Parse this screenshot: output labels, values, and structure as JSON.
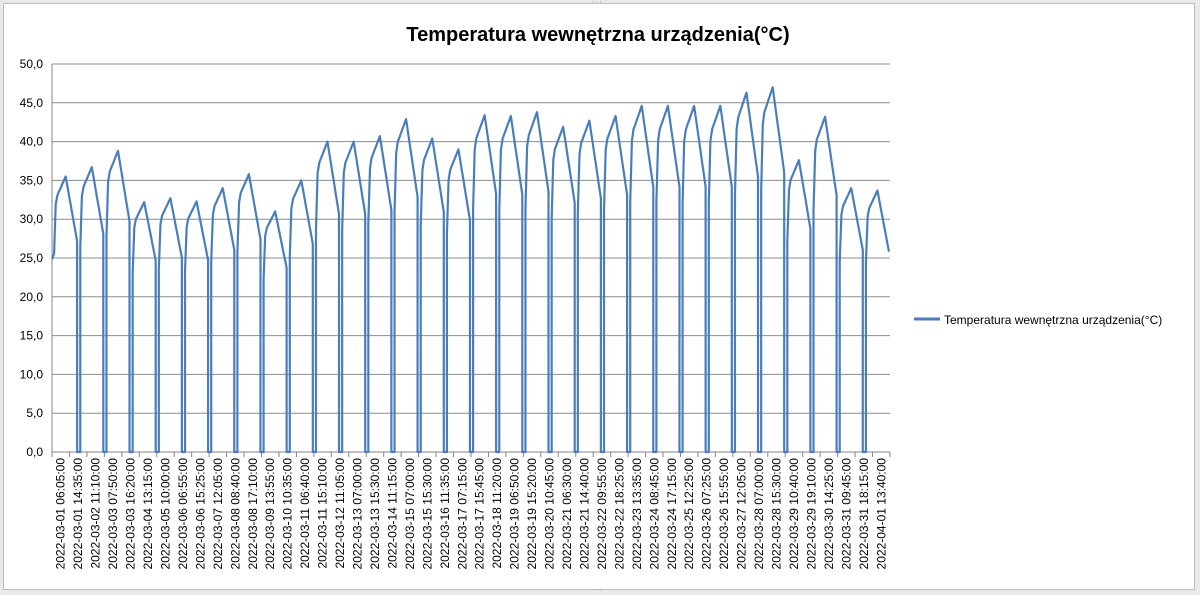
{
  "chart_data": {
    "type": "line",
    "title": "Temperatura wewnętrzna urządzenia(°C)",
    "legend_position": "right",
    "grid": true,
    "ylim": [
      0,
      50
    ],
    "yticks": [
      "0,0",
      "5,0",
      "10,0",
      "15,0",
      "20,0",
      "25,0",
      "30,0",
      "35,0",
      "40,0",
      "45,0",
      "50,0"
    ],
    "x_tick_labels": [
      "2022-03-01 06:05:00",
      "2022-03-01 14:35:00",
      "2022-03-02 11:10:00",
      "2022-03-03 07:50:00",
      "2022-03-03 16:20:00",
      "2022-03-04 13:15:00",
      "2022-03-05 10:00:00",
      "2022-03-06 06:55:00",
      "2022-03-06 15:25:00",
      "2022-03-07 12:05:00",
      "2022-03-08 08:40:00",
      "2022-03-08 17:10:00",
      "2022-03-09 13:55:00",
      "2022-03-10 10:35:00",
      "2022-03-11 06:40:00",
      "2022-03-11 15:10:00",
      "2022-03-12 11:05:00",
      "2022-03-13 07:00:00",
      "2022-03-13 15:30:00",
      "2022-03-14 11:15:00",
      "2022-03-15 07:00:00",
      "2022-03-15 15:30:00",
      "2022-03-16 11:35:00",
      "2022-03-17 07:15:00",
      "2022-03-17 15:45:00",
      "2022-03-18 11:20:00",
      "2022-03-19 06:50:00",
      "2022-03-19 15:20:00",
      "2022-03-20 10:45:00",
      "2022-03-21 06:30:00",
      "2022-03-21 14:40:00",
      "2022-03-22 09:55:00",
      "2022-03-22 18:25:00",
      "2022-03-23 13:35:00",
      "2022-03-24 08:45:00",
      "2022-03-24 17:15:00",
      "2022-03-25 12:25:00",
      "2022-03-26 07:25:00",
      "2022-03-26 15:55:00",
      "2022-03-27 12:05:00",
      "2022-03-28 07:00:00",
      "2022-03-28 15:30:00",
      "2022-03-29 10:40:00",
      "2022-03-29 19:10:00",
      "2022-03-30 14:25:00",
      "2022-03-31 09:45:00",
      "2022-03-31 18:15:00",
      "2022-04-01 13:40:00"
    ],
    "series": [
      {
        "name": "Temperatura wewnętrzna urządzenia(°C)",
        "color": "#4a7ebb",
        "daily_cycles": [
          {
            "day": "2022-03-01",
            "max": 35.5
          },
          {
            "day": "2022-03-02",
            "max": 36.7
          },
          {
            "day": "2022-03-03",
            "max": 38.8
          },
          {
            "day": "2022-03-04",
            "max": 32.2
          },
          {
            "day": "2022-03-05",
            "max": 32.7
          },
          {
            "day": "2022-03-06",
            "max": 32.3
          },
          {
            "day": "2022-03-07",
            "max": 34.0
          },
          {
            "day": "2022-03-08",
            "max": 35.8
          },
          {
            "day": "2022-03-09",
            "max": 31.0
          },
          {
            "day": "2022-03-10",
            "max": 35.0
          },
          {
            "day": "2022-03-11",
            "max": 40.0
          },
          {
            "day": "2022-03-12",
            "max": 40.0
          },
          {
            "day": "2022-03-13",
            "max": 40.7
          },
          {
            "day": "2022-03-14",
            "max": 42.9
          },
          {
            "day": "2022-03-15",
            "max": 40.4
          },
          {
            "day": "2022-03-16",
            "max": 39.0
          },
          {
            "day": "2022-03-17",
            "max": 43.4
          },
          {
            "day": "2022-03-18",
            "max": 43.3
          },
          {
            "day": "2022-03-19",
            "max": 43.8
          },
          {
            "day": "2022-03-20",
            "max": 41.9
          },
          {
            "day": "2022-03-21",
            "max": 42.7
          },
          {
            "day": "2022-03-22",
            "max": 43.3
          },
          {
            "day": "2022-03-23",
            "max": 44.6
          },
          {
            "day": "2022-03-24",
            "max": 44.6
          },
          {
            "day": "2022-03-25",
            "max": 44.6
          },
          {
            "day": "2022-03-26",
            "max": 44.6
          },
          {
            "day": "2022-03-27",
            "max": 46.3
          },
          {
            "day": "2022-03-28",
            "max": 47.0
          },
          {
            "day": "2022-03-29",
            "max": 37.6
          },
          {
            "day": "2022-03-30",
            "max": 43.2
          },
          {
            "day": "2022-03-31",
            "max": 34.0
          },
          {
            "day": "2022-04-01",
            "max": 33.7
          }
        ],
        "night_value": 0
      }
    ]
  }
}
